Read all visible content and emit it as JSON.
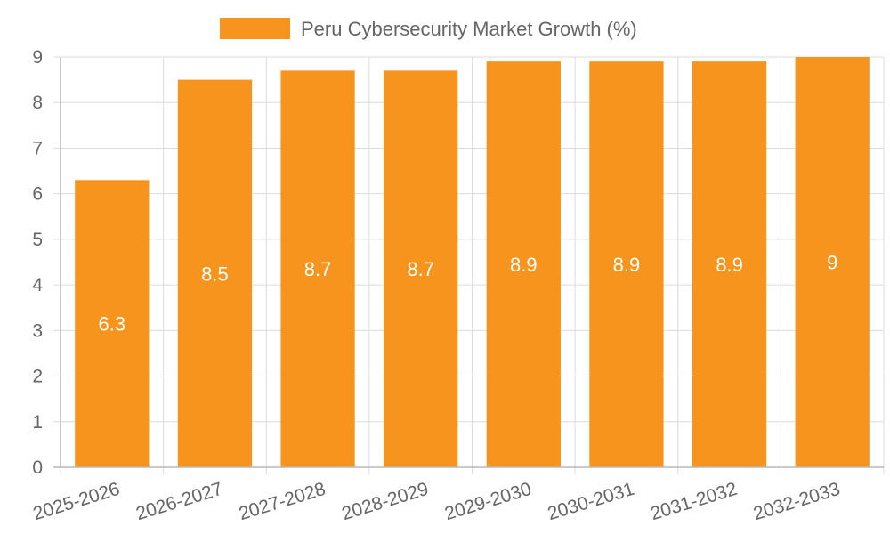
{
  "chart_data": {
    "type": "bar",
    "categories": [
      "2025-2026",
      "2026-2027",
      "2027-2028",
      "2028-2029",
      "2029-2030",
      "2030-2031",
      "2031-2032",
      "2032-2033"
    ],
    "series": [
      {
        "name": "Peru Cybersecurity Market Growth (%)",
        "values": [
          6.3,
          8.5,
          8.7,
          8.7,
          8.9,
          8.9,
          8.9,
          9
        ],
        "color": "#f7941d"
      }
    ],
    "data_labels": [
      "6.3",
      "8.5",
      "8.7",
      "8.7",
      "8.9",
      "8.9",
      "8.9",
      "9"
    ],
    "ylim": [
      0,
      9
    ],
    "yticks": [
      "0",
      "1",
      "2",
      "3",
      "4",
      "5",
      "6",
      "7",
      "8",
      "9"
    ],
    "grid": true,
    "legend_position": "top-center",
    "title": "",
    "xlabel": "",
    "ylabel": ""
  }
}
